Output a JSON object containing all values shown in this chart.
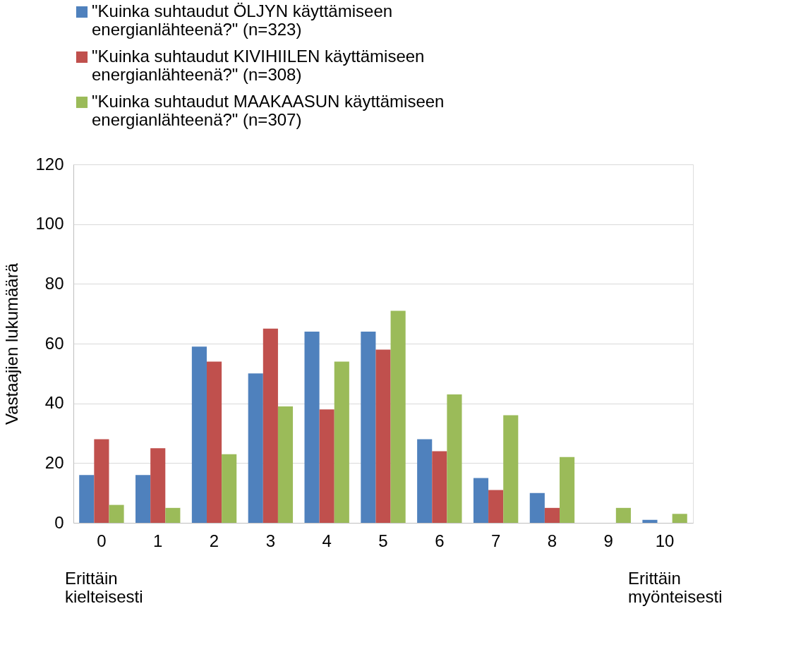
{
  "chart_data": {
    "type": "bar",
    "categories": [
      "0",
      "1",
      "2",
      "3",
      "4",
      "5",
      "6",
      "7",
      "8",
      "9",
      "10"
    ],
    "series": [
      {
        "name": "\"Kuinka suhtaudut ÖLJYN käyttämiseen energianlähteenä?\" (n=323)",
        "color": "#4f81bd",
        "values": [
          16,
          16,
          59,
          50,
          64,
          64,
          28,
          15,
          10,
          0,
          1
        ]
      },
      {
        "name": "\"Kuinka suhtaudut KIVIHIILEN käyttämiseen energianlähteenä?\" (n=308)",
        "color": "#c0504d",
        "values": [
          28,
          25,
          54,
          65,
          38,
          58,
          24,
          11,
          5,
          0,
          0
        ]
      },
      {
        "name": "\"Kuinka suhtaudut MAAKAASUN käyttämiseen energianlähteenä?\" (n=307)",
        "color": "#9bbb59",
        "values": [
          6,
          5,
          23,
          39,
          54,
          71,
          43,
          36,
          22,
          5,
          3
        ]
      }
    ],
    "ylabel": "Vastaajien lukumäärä",
    "ylim": [
      0,
      120
    ],
    "yticks": [
      0,
      20,
      40,
      60,
      80,
      100,
      120
    ],
    "grid": "y",
    "legend": "top",
    "annotations": [
      "Erittäin kielteisesti",
      "Erittäin myönteisesti"
    ]
  }
}
